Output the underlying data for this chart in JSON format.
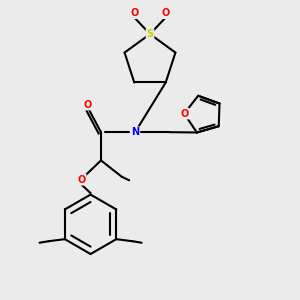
{
  "background_color": "#ebebeb",
  "bond_color": "#000000",
  "atom_colors": {
    "O": "#ff0000",
    "N": "#0000ff",
    "S": "#cccc00",
    "C": "#000000"
  },
  "lw": 1.5,
  "fs": 7.0
}
